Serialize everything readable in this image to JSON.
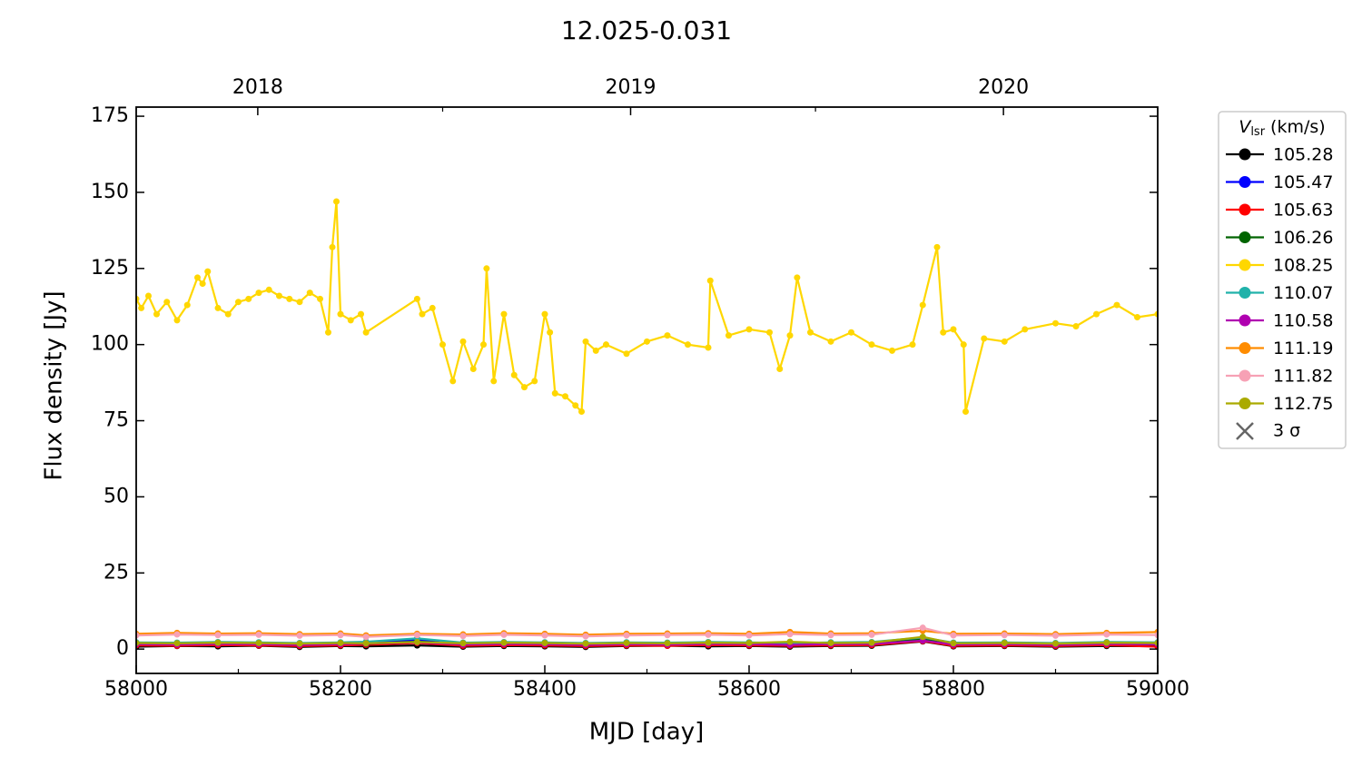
{
  "chart_data": {
    "type": "line",
    "title": "12.025-0.031",
    "xlabel": "MJD [day]",
    "ylabel": "Flux density [Jy]",
    "xlim": [
      58000,
      59000
    ],
    "ylim": [
      -8,
      178
    ],
    "xticks": [
      58000,
      58200,
      58400,
      58600,
      58800,
      59000
    ],
    "xminorticks": [
      58100,
      58300,
      58500,
      58700,
      58900
    ],
    "yticks": [
      0,
      25,
      50,
      75,
      100,
      125,
      150,
      175
    ],
    "x2ticks": [
      {
        "value": 58119,
        "label": "2018"
      },
      {
        "value": 58484,
        "label": "2019"
      },
      {
        "value": 58849,
        "label": "2020"
      }
    ],
    "x2minorticks": [
      58300,
      58665
    ],
    "legend_title": {
      "main": "V",
      "sub": "lsr",
      "unit": "(km/s)"
    },
    "legend_position": "outside-upper-right",
    "limit_marker": {
      "label": "3 σ",
      "color": "#666666"
    },
    "series": [
      {
        "name": "105.28",
        "color": "#000000",
        "x": [
          58000,
          58040,
          58080,
          58120,
          58160,
          58200,
          58225,
          58275,
          58320,
          58360,
          58400,
          58440,
          58480,
          58520,
          58560,
          58600,
          58640,
          58680,
          58720,
          58770,
          58800,
          58850,
          58900,
          58950,
          59000
        ],
        "values": [
          0.8,
          1.0,
          0.9,
          1.1,
          0.7,
          1.0,
          0.9,
          1.2,
          0.8,
          1.0,
          0.9,
          0.7,
          1.0,
          1.1,
          0.9,
          1.0,
          0.8,
          1.0,
          1.1,
          2.5,
          0.9,
          1.0,
          0.8,
          1.0,
          0.9
        ]
      },
      {
        "name": "105.47",
        "color": "#0000ff",
        "x": [
          58000,
          58040,
          58080,
          58120,
          58160,
          58200,
          58225,
          58275,
          58320,
          58360,
          58400,
          58440,
          58480,
          58520,
          58560,
          58600,
          58640,
          58680,
          58720,
          58770,
          58800,
          58850,
          58900,
          58950,
          59000
        ],
        "values": [
          1.5,
          1.4,
          1.6,
          1.5,
          1.3,
          1.5,
          2.0,
          3.0,
          1.4,
          1.6,
          1.5,
          1.2,
          1.5,
          1.4,
          1.6,
          1.5,
          1.3,
          1.5,
          1.6,
          3.0,
          1.4,
          1.5,
          1.3,
          1.6,
          1.5
        ]
      },
      {
        "name": "105.63",
        "color": "#ff0000",
        "x": [
          58000,
          58040,
          58080,
          58120,
          58160,
          58200,
          58225,
          58275,
          58320,
          58360,
          58400,
          58440,
          58480,
          58520,
          58560,
          58600,
          58640,
          58680,
          58720,
          58770,
          58800,
          58850,
          58900,
          58950,
          59000
        ],
        "values": [
          1.2,
          1.1,
          1.3,
          1.2,
          1.0,
          1.2,
          1.4,
          2.0,
          1.1,
          1.3,
          1.2,
          1.0,
          1.2,
          1.1,
          1.3,
          1.2,
          1.1,
          1.2,
          1.3,
          2.6,
          1.1,
          1.2,
          1.0,
          1.3,
          0.8
        ]
      },
      {
        "name": "106.26",
        "color": "#006400",
        "x": [
          58000,
          58040,
          58080,
          58120,
          58160,
          58200,
          58225,
          58275,
          58320,
          58360,
          58400,
          58440,
          58480,
          58520,
          58560,
          58600,
          58640,
          58680,
          58720,
          58770,
          58800,
          58850,
          58900,
          58950,
          59000
        ],
        "values": [
          1.8,
          1.7,
          1.9,
          1.8,
          1.6,
          1.8,
          1.7,
          2.5,
          1.7,
          1.9,
          1.8,
          1.6,
          1.8,
          1.7,
          1.9,
          1.8,
          1.6,
          1.8,
          1.9,
          3.2,
          1.7,
          1.8,
          1.6,
          1.9,
          1.8
        ]
      },
      {
        "name": "108.25",
        "color": "#ffd700",
        "x": [
          58000,
          58005,
          58012,
          58020,
          58030,
          58040,
          58050,
          58060,
          58065,
          58070,
          58080,
          58090,
          58100,
          58110,
          58120,
          58130,
          58140,
          58150,
          58160,
          58170,
          58180,
          58188,
          58192,
          58196,
          58200,
          58210,
          58220,
          58225,
          58275,
          58280,
          58290,
          58300,
          58310,
          58320,
          58330,
          58340,
          58343,
          58350,
          58360,
          58370,
          58380,
          58390,
          58400,
          58405,
          58410,
          58420,
          58430,
          58436,
          58440,
          58450,
          58460,
          58480,
          58500,
          58520,
          58540,
          58560,
          58562,
          58580,
          58600,
          58620,
          58630,
          58640,
          58647,
          58660,
          58680,
          58700,
          58720,
          58740,
          58760,
          58770,
          58784,
          58790,
          58800,
          58810,
          58812,
          58830,
          58850,
          58870,
          58900,
          58920,
          58940,
          58960,
          58980,
          59000
        ],
        "values": [
          115,
          112,
          116,
          110,
          114,
          108,
          113,
          122,
          120,
          124,
          112,
          110,
          114,
          115,
          117,
          118,
          116,
          115,
          114,
          117,
          115,
          104,
          132,
          147,
          110,
          108,
          110,
          104,
          115,
          110,
          112,
          100,
          88,
          101,
          92,
          100,
          125,
          88,
          110,
          90,
          86,
          88,
          110,
          104,
          84,
          83,
          80,
          78,
          101,
          98,
          100,
          97,
          101,
          103,
          100,
          99,
          121,
          103,
          105,
          104,
          92,
          103,
          122,
          104,
          101,
          104,
          100,
          98,
          100,
          113,
          132,
          104,
          105,
          100,
          78,
          102,
          101,
          105,
          107,
          106,
          110,
          113,
          109,
          110
        ]
      },
      {
        "name": "110.07",
        "color": "#20b2aa",
        "x": [
          58000,
          58040,
          58080,
          58120,
          58160,
          58200,
          58225,
          58275,
          58320,
          58360,
          58400,
          58440,
          58480,
          58520,
          58560,
          58600,
          58640,
          58680,
          58720,
          58770,
          58800,
          58850,
          58900,
          58950,
          59000
        ],
        "values": [
          2.2,
          2.1,
          2.3,
          2.2,
          2.0,
          2.2,
          2.4,
          3.5,
          2.1,
          2.3,
          2.2,
          2.0,
          2.2,
          2.1,
          2.3,
          2.2,
          2.0,
          2.2,
          2.3,
          3.8,
          2.1,
          2.2,
          2.0,
          2.3,
          2.2
        ]
      },
      {
        "name": "110.58",
        "color": "#b000b0",
        "x": [
          58000,
          58040,
          58080,
          58120,
          58160,
          58200,
          58225,
          58275,
          58320,
          58360,
          58400,
          58440,
          58480,
          58520,
          58560,
          58600,
          58640,
          58680,
          58720,
          58770,
          58800,
          58850,
          58900,
          58950,
          59000
        ],
        "values": [
          1.6,
          1.5,
          1.7,
          1.6,
          1.4,
          1.6,
          1.8,
          2.2,
          1.5,
          1.7,
          1.6,
          1.4,
          1.6,
          1.5,
          1.7,
          1.6,
          1.4,
          1.6,
          1.7,
          2.8,
          1.5,
          1.6,
          1.4,
          1.7,
          1.6
        ]
      },
      {
        "name": "111.19",
        "color": "#ff8c00",
        "x": [
          58000,
          58040,
          58080,
          58120,
          58160,
          58200,
          58225,
          58275,
          58320,
          58360,
          58400,
          58440,
          58480,
          58520,
          58560,
          58600,
          58640,
          58680,
          58720,
          58770,
          58800,
          58850,
          58900,
          58950,
          59000
        ],
        "values": [
          5.0,
          5.3,
          5.1,
          5.2,
          4.9,
          5.1,
          4.5,
          5.0,
          4.8,
          5.2,
          5.0,
          4.7,
          5.0,
          5.1,
          5.2,
          5.0,
          5.6,
          5.1,
          5.2,
          6.0,
          5.0,
          5.1,
          4.9,
          5.3,
          5.6
        ]
      },
      {
        "name": "111.82",
        "color": "#f7a1b5",
        "x": [
          58000,
          58040,
          58080,
          58120,
          58160,
          58200,
          58225,
          58275,
          58320,
          58360,
          58400,
          58440,
          58480,
          58520,
          58560,
          58600,
          58640,
          58680,
          58720,
          58770,
          58800,
          58850,
          58900,
          58950,
          59000
        ],
        "values": [
          4.5,
          4.8,
          4.6,
          4.7,
          4.4,
          4.6,
          4.0,
          4.6,
          4.3,
          4.7,
          4.5,
          4.2,
          4.5,
          4.6,
          4.7,
          4.5,
          4.9,
          4.6,
          4.7,
          7.0,
          4.5,
          4.6,
          4.4,
          4.8,
          4.6
        ]
      },
      {
        "name": "112.75",
        "color": "#aaaa00",
        "x": [
          58000,
          58040,
          58080,
          58120,
          58160,
          58200,
          58225,
          58275,
          58320,
          58360,
          58400,
          58440,
          58480,
          58520,
          58560,
          58600,
          58640,
          58680,
          58720,
          58770,
          58800,
          58850,
          58900,
          58950,
          59000
        ],
        "values": [
          2.0,
          1.9,
          2.1,
          2.0,
          1.8,
          2.0,
          1.9,
          2.3,
          1.9,
          2.1,
          2.0,
          1.8,
          2.0,
          1.9,
          2.1,
          2.0,
          2.4,
          2.0,
          2.1,
          4.0,
          1.9,
          2.0,
          1.8,
          2.1,
          2.0
        ]
      }
    ]
  }
}
